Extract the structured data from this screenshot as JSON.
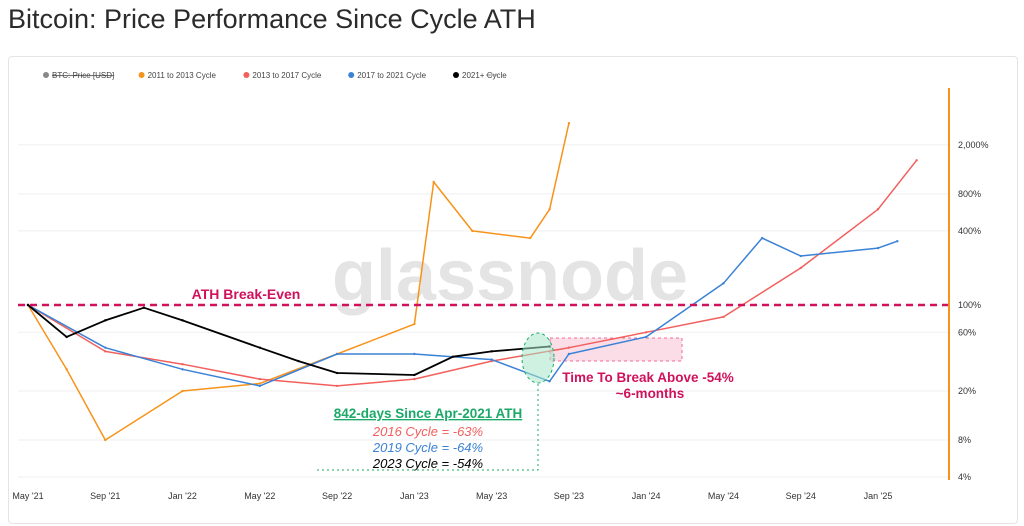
{
  "title": "Bitcoin: Price Performance Since Cycle ATH",
  "legend": [
    {
      "label": "BTC: Price [USD]",
      "color": "#888888",
      "struck": true
    },
    {
      "label": "2011 to 2013 Cycle",
      "color": "#f7931a"
    },
    {
      "label": "2013 to 2017 Cycle",
      "color": "#f25f5c"
    },
    {
      "label": "2017 to 2021 Cycle",
      "color": "#3b82d6"
    },
    {
      "label": "2021+ Cycle",
      "color": "#000000"
    }
  ],
  "watermark": "glassnode",
  "annotations": {
    "ath_label": "ATH Break-Even",
    "break_label_1": "Time To Break Above -54%",
    "break_label_2": "~6-months",
    "days_label": "842-days Since Apr-2021 ATH",
    "c2016": "2016 Cycle = -63%",
    "c2019": "2019 Cycle = -64%",
    "c2023": "2023 Cycle = -54%"
  },
  "chart_data": {
    "type": "line",
    "title": "Bitcoin: Price Performance Since Cycle ATH",
    "x_ticks": [
      "May '21",
      "Sep '21",
      "Jan '22",
      "May '22",
      "Sep '22",
      "Jan '23",
      "May '23",
      "Sep '23",
      "Jan '24",
      "May '24",
      "Sep '24",
      "Jan '25"
    ],
    "y_scale": "log",
    "y_ticks": [
      "2,000%",
      "800%",
      "400%",
      "100%",
      "60%",
      "20%",
      "8%",
      "4%"
    ],
    "y_tick_values": [
      2000,
      800,
      400,
      100,
      60,
      20,
      8,
      4
    ],
    "ath_breakeven": 100,
    "series": [
      {
        "name": "2011 to 2013 Cycle",
        "color": "#f7931a",
        "points": [
          [
            "May '21",
            100
          ],
          [
            "Jul '21",
            30
          ],
          [
            "Sep '21",
            8
          ],
          [
            "Jan '22",
            20
          ],
          [
            "May '22",
            23
          ],
          [
            "Sep '22",
            40
          ],
          [
            "Jan '23",
            70
          ],
          [
            "Feb '23",
            1000
          ],
          [
            "Apr '23",
            400
          ],
          [
            "Jul '23",
            350
          ],
          [
            "Aug '23",
            600
          ],
          [
            "Sep '23",
            3000
          ]
        ]
      },
      {
        "name": "2013 to 2017 Cycle",
        "color": "#f25f5c",
        "points": [
          [
            "May '21",
            100
          ],
          [
            "Sep '21",
            42
          ],
          [
            "Jan '22",
            33
          ],
          [
            "May '22",
            25
          ],
          [
            "Sep '22",
            22
          ],
          [
            "Jan '23",
            25
          ],
          [
            "May '23",
            35
          ],
          [
            "Sep '23",
            45
          ],
          [
            "Jan '24",
            60
          ],
          [
            "May '24",
            80
          ],
          [
            "Sep '24",
            200
          ],
          [
            "Jan '25",
            600
          ],
          [
            "Mar '25",
            1500
          ]
        ]
      },
      {
        "name": "2017 to 2021 Cycle",
        "color": "#3b82d6",
        "points": [
          [
            "May '21",
            100
          ],
          [
            "Sep '21",
            45
          ],
          [
            "Jan '22",
            30
          ],
          [
            "May '22",
            22
          ],
          [
            "Sep '22",
            40
          ],
          [
            "Jan '23",
            40
          ],
          [
            "May '23",
            36
          ],
          [
            "Aug '23",
            24
          ],
          [
            "Sep '23",
            40
          ],
          [
            "Jan '24",
            55
          ],
          [
            "May '24",
            150
          ],
          [
            "Jul '24",
            350
          ],
          [
            "Sep '24",
            250
          ],
          [
            "Jan '25",
            290
          ],
          [
            "Feb '25",
            330
          ]
        ]
      },
      {
        "name": "2021+ Cycle",
        "color": "#000000",
        "points": [
          [
            "May '21",
            100
          ],
          [
            "Jul '21",
            55
          ],
          [
            "Sep '21",
            75
          ],
          [
            "Nov '21",
            95
          ],
          [
            "Jan '22",
            75
          ],
          [
            "May '22",
            45
          ],
          [
            "Jul '22",
            35
          ],
          [
            "Sep '22",
            28
          ],
          [
            "Jan '23",
            27
          ],
          [
            "Mar '23",
            38
          ],
          [
            "May '23",
            42
          ],
          [
            "Aug '23",
            46
          ]
        ]
      }
    ]
  }
}
